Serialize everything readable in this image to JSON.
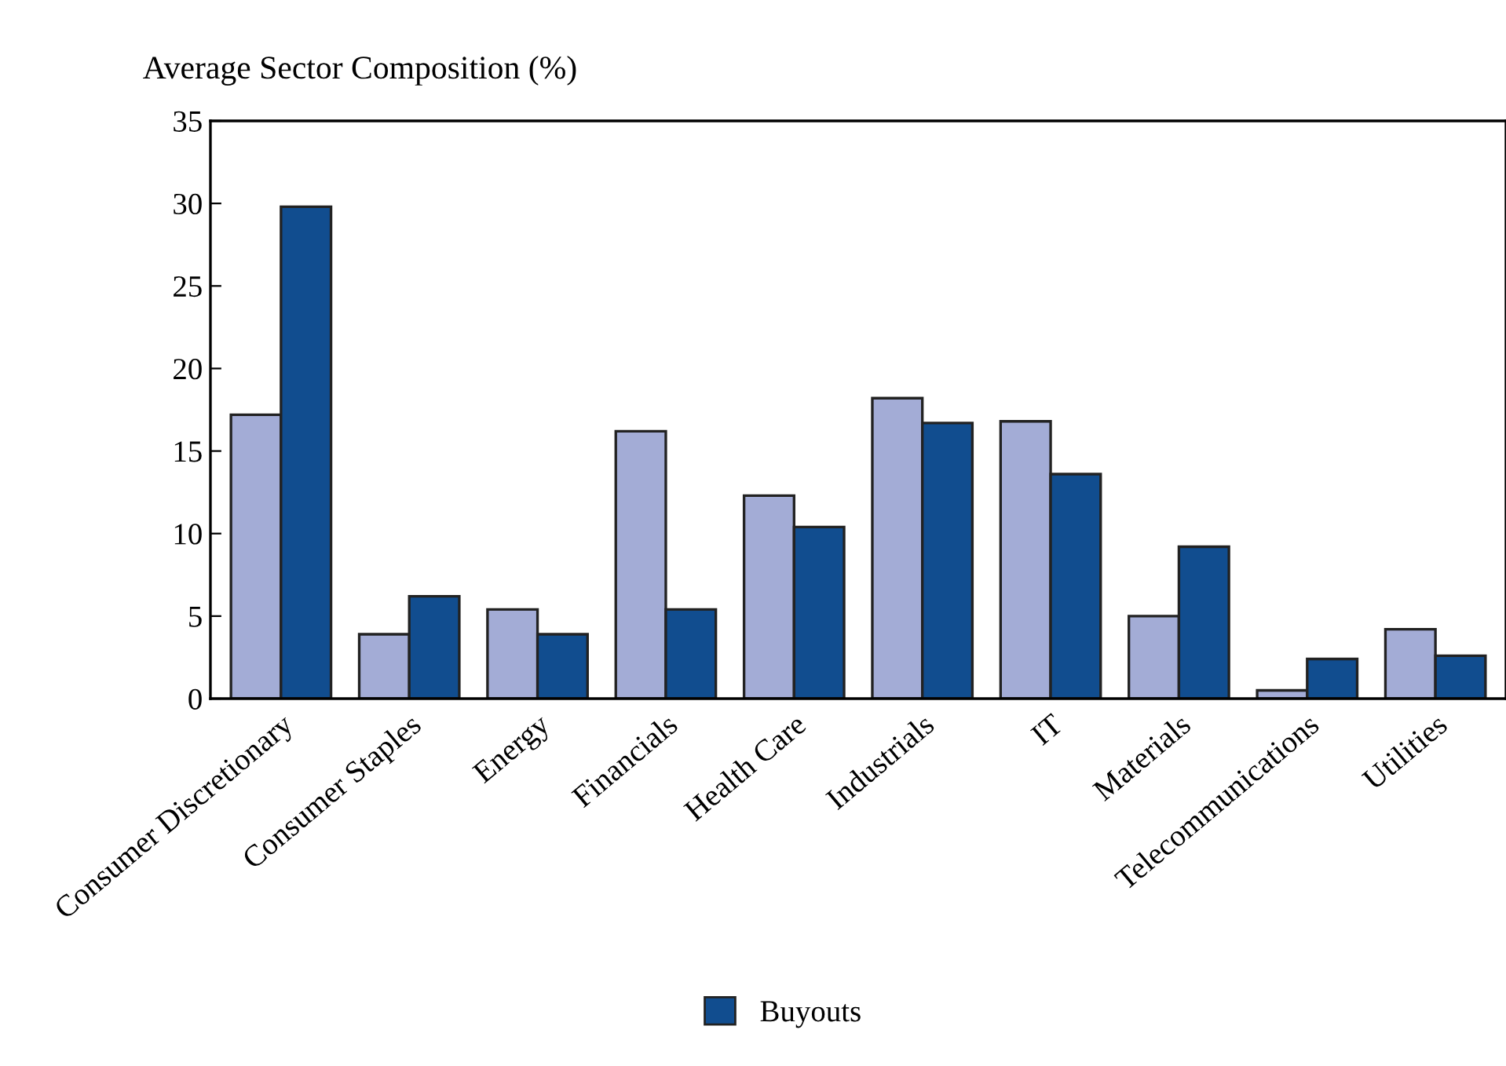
{
  "chart_data": {
    "type": "bar",
    "ylabel": "Average Sector Composition (%)",
    "categories": [
      "Consumer Discretionary",
      "Consumer Staples",
      "Energy",
      "Financials",
      "Health Care",
      "Industrials",
      "IT",
      "Materials",
      "Telecommunications",
      "Utilities"
    ],
    "series": [
      {
        "color": "#a3acd6",
        "values": [
          17.2,
          3.9,
          5.4,
          16.2,
          12.3,
          18.2,
          16.8,
          5.0,
          0.5,
          4.2
        ]
      },
      {
        "name": "Buyouts",
        "color": "#114d8f",
        "values": [
          29.8,
          6.2,
          3.9,
          5.4,
          10.4,
          16.7,
          13.6,
          9.2,
          2.4,
          2.6
        ]
      }
    ],
    "ylim": [
      0,
      35
    ],
    "yticks": [
      0,
      5,
      10,
      15,
      20,
      25,
      30,
      35
    ],
    "grid": false,
    "legend": "bottom"
  }
}
